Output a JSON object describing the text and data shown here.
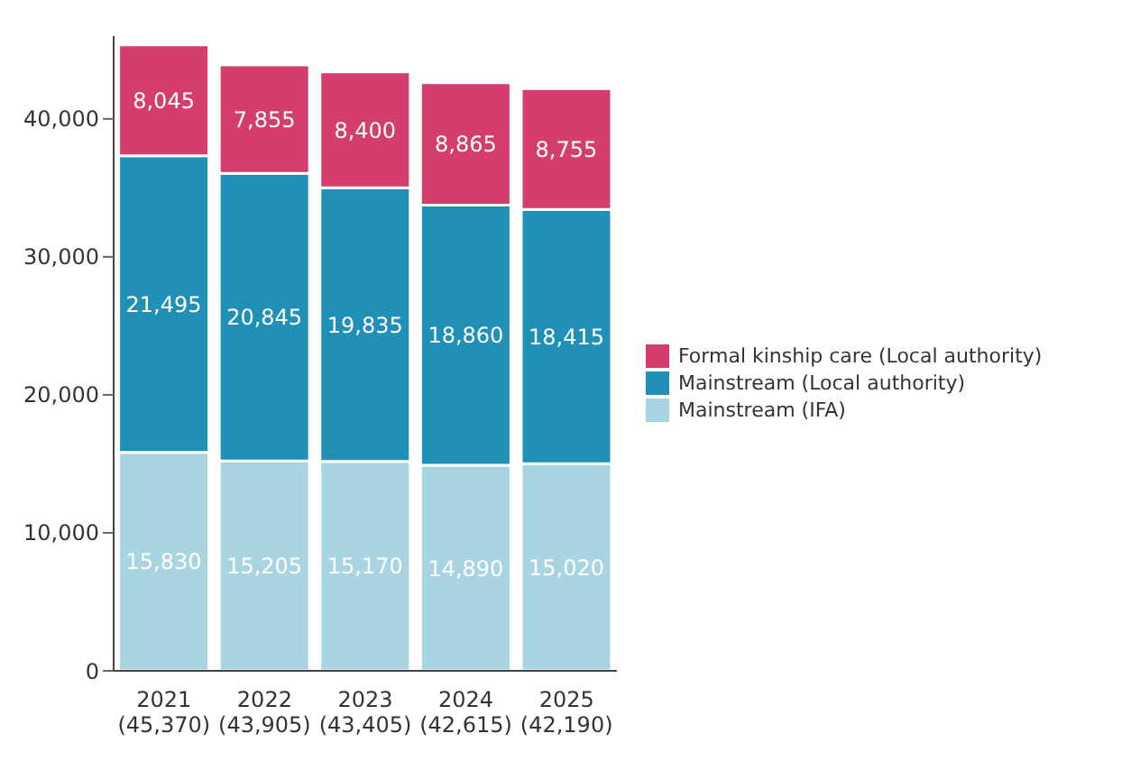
{
  "chart_data": {
    "type": "bar",
    "stacked": true,
    "categories": [
      "2021\n(45,370)",
      "2022\n(43,905)",
      "2023\n(43,405)",
      "2024\n(42,615)",
      "2025\n(42,190)"
    ],
    "series": [
      {
        "name": "Mainstream (IFA)",
        "color": "#a9d5e2",
        "values": [
          15830,
          15205,
          15170,
          14890,
          15020
        ],
        "value_labels": [
          "15,830",
          "15,205",
          "15,170",
          "14,890",
          "15,020"
        ]
      },
      {
        "name": "Mainstream (Local authority)",
        "color": "#2190b6",
        "values": [
          21495,
          20845,
          19835,
          18860,
          18415
        ],
        "value_labels": [
          "21,495",
          "20,845",
          "19,835",
          "18,860",
          "18,415"
        ]
      },
      {
        "name": "Formal kinship care (Local authority)",
        "color": "#d43d6c",
        "values": [
          8045,
          7855,
          8400,
          8865,
          8755
        ],
        "value_labels": [
          "8,045",
          "7,855",
          "8,400",
          "8,865",
          "8,755"
        ]
      }
    ],
    "ylim": [
      0,
      46000
    ],
    "yticks": [
      0,
      {
        "value": 10000,
        "label": "10,000"
      },
      {
        "value": 20000,
        "label": "20,000"
      },
      {
        "value": 30000,
        "label": "30,000"
      },
      {
        "value": 40000,
        "label": "40,000"
      }
    ],
    "grid": false,
    "legend": "right"
  }
}
